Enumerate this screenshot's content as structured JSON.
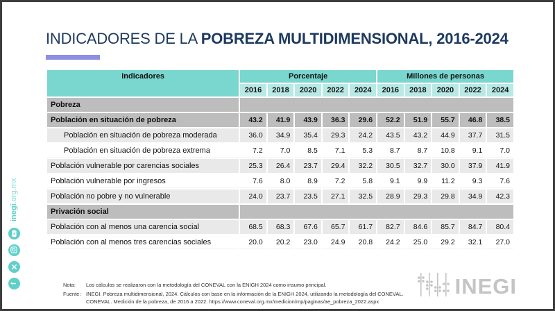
{
  "title": {
    "prefix": "INDICADORES DE LA ",
    "bold": "POBREZA MULTIDIMENSIONAL, 2016-2024"
  },
  "colors": {
    "title_navy": "#1d3a5f",
    "accent_purple": "#8e8ee2",
    "header_teal": "#79d7d0",
    "year_teal": "#b8e9e5",
    "section_gray": "#bdbdbd",
    "shaded_row_gray": "#e9e9e9",
    "sidebar_teal": "#5fd0c9",
    "logo_gray": "#c4c4c4"
  },
  "table": {
    "header": {
      "indicators": "Indicadores",
      "group_percent": "Porcentaje",
      "group_millions": "Millones de personas"
    },
    "years": [
      "2016",
      "2018",
      "2020",
      "2022",
      "2024"
    ],
    "rows": [
      {
        "label": "Pobreza",
        "type": "section"
      },
      {
        "label": "Población en situación de pobreza",
        "type": "total",
        "pct": [
          "43.2",
          "41.9",
          "43.9",
          "36.3",
          "29.6"
        ],
        "millions": [
          "52.2",
          "51.9",
          "55.7",
          "46.8",
          "38.5"
        ]
      },
      {
        "label": "Población en situación de pobreza moderada",
        "type": "sub-shaded",
        "pct": [
          "36.0",
          "34.9",
          "35.4",
          "29.3",
          "24.2"
        ],
        "millions": [
          "43.5",
          "43.2",
          "44.9",
          "37.7",
          "31.5"
        ]
      },
      {
        "label": "Población en situación de pobreza extrema",
        "type": "sub-white",
        "pct": [
          "7.2",
          "7.0",
          "8.5",
          "7.1",
          "5.3"
        ],
        "millions": [
          "8.7",
          "8.7",
          "10.8",
          "9.1",
          "7.0"
        ]
      },
      {
        "label": "Población vulnerable por carencias sociales",
        "type": "shaded",
        "pct": [
          "25.3",
          "26.4",
          "23.7",
          "29.4",
          "32.2"
        ],
        "millions": [
          "30.5",
          "32.7",
          "30.0",
          "37.9",
          "41.9"
        ]
      },
      {
        "label": "Población vulnerable por ingresos",
        "type": "white",
        "pct": [
          "7.6",
          "8.0",
          "8.9",
          "7.2",
          "5.8"
        ],
        "millions": [
          "9.1",
          "9.9",
          "11.2",
          "9.3",
          "7.6"
        ]
      },
      {
        "label": "Población no pobre y no vulnerable",
        "type": "shaded",
        "pct": [
          "24.0",
          "23.7",
          "23.5",
          "27.1",
          "32.5"
        ],
        "millions": [
          "28.9",
          "29.3",
          "29.8",
          "34.9",
          "42.3"
        ]
      },
      {
        "label": "Privación social",
        "type": "section"
      },
      {
        "label": "Población con al menos una carencia social",
        "type": "shaded",
        "pct": [
          "68.5",
          "68.3",
          "67.6",
          "65.7",
          "61.7"
        ],
        "millions": [
          "82.7",
          "84.6",
          "85.7",
          "84.7",
          "80.4"
        ]
      },
      {
        "label": "Población con al menos tres carencias sociales",
        "type": "white",
        "pct": [
          "20.0",
          "20.2",
          "23.0",
          "24.9",
          "20.8"
        ],
        "millions": [
          "24.2",
          "25.0",
          "29.2",
          "32.1",
          "27.0"
        ]
      }
    ]
  },
  "notes": {
    "nota_label": "Nota:",
    "nota_text": "Los cálculos se realizaron con la metodología del CONEVAL con la ENIGH 2024 como insumo principal.",
    "fuente_label": "Fuente:",
    "fuente_line1": "INEGI. Pobreza multidimensional, 2024. Cálculos con base en la información de la ENIGH 2024, utilizando la metodología del CONEVAL.",
    "fuente_line2": "CONEVAL. Medición de la pobreza, de 2016 a 2022. https://www.coneval.org.mx/medicion/mp/paginas/ae_pobreza_2022.aspx"
  },
  "sidebar": {
    "url_bold": "inegi",
    "url_rest": ".org.mx",
    "icons": [
      "facebook-icon",
      "x-icon",
      "instagram-icon",
      "youtube-icon"
    ]
  },
  "logo": {
    "text": "INEGI"
  }
}
